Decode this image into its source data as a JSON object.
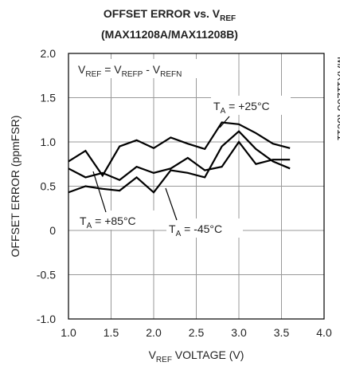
{
  "chart_data": {
    "type": "line",
    "title": [
      "OFFSET ERROR vs. V",
      "REF"
    ],
    "subtitle": "(MAX11208A/MAX11208B)",
    "x_label": [
      "V",
      "REF",
      " VOLTAGE (V)"
    ],
    "y_label": "OFFSET ERROR (ppmFSR)",
    "side_note": "MAX11208 toc11",
    "annotation": [
      "V",
      "REF",
      " = V",
      "REFP",
      " - V",
      "REFN"
    ],
    "x": [
      1.0,
      1.2,
      1.4,
      1.6,
      1.8,
      2.0,
      2.2,
      2.4,
      2.6,
      2.8,
      3.0,
      3.2,
      3.4,
      3.6
    ],
    "series": [
      {
        "label": [
          "T",
          "A",
          " = +25°C"
        ],
        "color": "#000000",
        "values": [
          0.78,
          0.9,
          0.62,
          0.95,
          1.02,
          0.93,
          1.05,
          0.98,
          0.92,
          1.22,
          1.2,
          1.1,
          0.98,
          0.93
        ]
      },
      {
        "label": [
          "T",
          "A",
          " = +85°C"
        ],
        "color": "#000000",
        "values": [
          0.7,
          0.6,
          0.65,
          0.57,
          0.72,
          0.65,
          0.7,
          0.82,
          0.68,
          0.72,
          1.0,
          0.75,
          0.8,
          0.8
        ]
      },
      {
        "label": [
          "T",
          "A",
          " = -45°C"
        ],
        "color": "#000000",
        "values": [
          0.43,
          0.5,
          0.47,
          0.45,
          0.6,
          0.43,
          0.68,
          0.65,
          0.6,
          0.95,
          1.12,
          0.92,
          0.78,
          0.7
        ]
      }
    ],
    "xlim": [
      1.0,
      4.0
    ],
    "xticks": [
      {
        "value": 1.0,
        "label": "1.0"
      },
      1.5,
      {
        "value": 2.0,
        "label": "2.0"
      },
      2.5,
      {
        "value": 3.0,
        "label": "3.0"
      },
      3.5,
      {
        "value": 4.0,
        "label": "4.0"
      }
    ],
    "ylim": [
      -1.0,
      2.0
    ],
    "yticks": [
      {
        "value": -1.0,
        "label": "-1.0"
      },
      -0.5,
      0,
      0.5,
      {
        "value": 1.0,
        "label": "1.0"
      },
      1.5,
      {
        "value": 2.0,
        "label": "2.0"
      }
    ],
    "grid": true
  }
}
